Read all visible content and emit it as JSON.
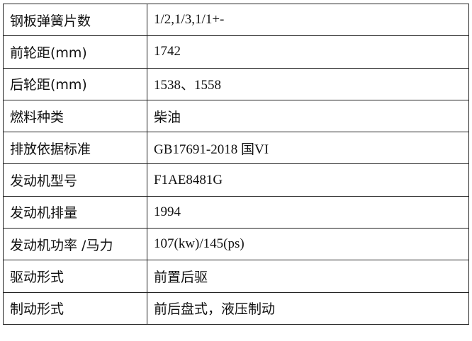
{
  "rows": [
    {
      "label": "钢板弹簧片数",
      "value": "1/2,1/3,1/1+-"
    },
    {
      "label": "前轮距(mm)",
      "value": "1742"
    },
    {
      "label": "后轮距(mm)",
      "value": "1538、1558"
    },
    {
      "label": "燃料种类",
      "value": "柴油"
    },
    {
      "label": "排放依据标准",
      "value": "GB17691-2018 国VI"
    },
    {
      "label": "发动机型号",
      "value": "F1AE8481G"
    },
    {
      "label": "发动机排量",
      "value": "1994"
    },
    {
      "label": "发动机功率 /马力",
      "value": "107(kw)/145(ps)"
    },
    {
      "label": "驱动形式",
      "value": "前置后驱"
    },
    {
      "label": "制动形式",
      "value": "前后盘式，液压制动"
    }
  ]
}
